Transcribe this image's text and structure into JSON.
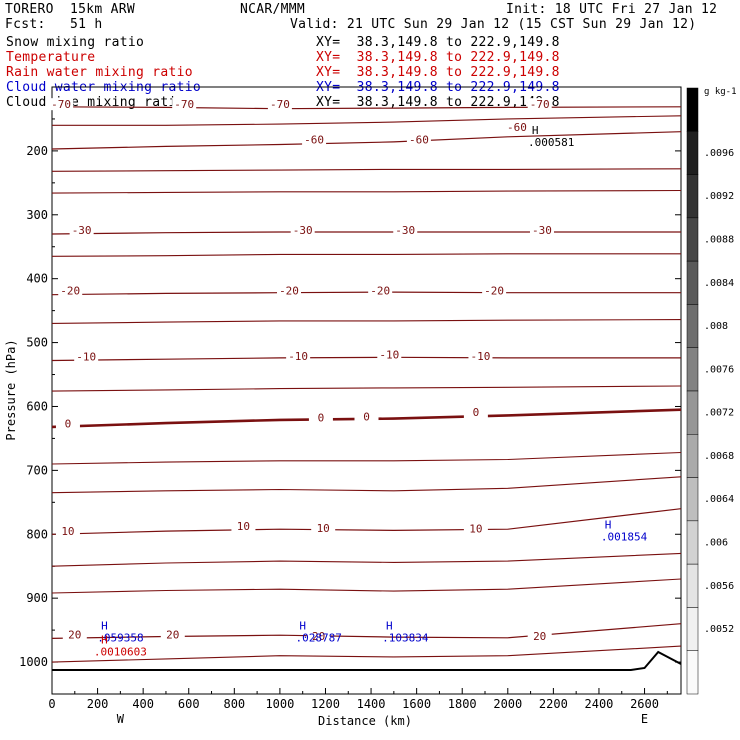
{
  "header": {
    "model": "TORERO  15km ARW",
    "org": "NCAR/MMM",
    "init": "Init: 18 UTC Fri 27 Jan 12",
    "fcst": "Fcst:   51 h",
    "valid": "Valid: 21 UTC Sun 29 Jan 12 (15 CST Sun 29 Jan 12)"
  },
  "fields": [
    {
      "name": "Snow mixing ratio",
      "xy": "XY=  38.3,149.8 to 222.9,149.8",
      "color": "#000000"
    },
    {
      "name": "Temperature",
      "xy": "XY=  38.3,149.8 to 222.9,149.8",
      "color": "#cc0000"
    },
    {
      "name": "Rain water mixing ratio",
      "xy": "XY=  38.3,149.8 to 222.9,149.8",
      "color": "#cc0000"
    },
    {
      "name": "Cloud water mixing ratio",
      "xy": "XY=  38.3,149.8 to 222.9,149.8",
      "color": "#0000cc"
    },
    {
      "name": "Cloud ice mixing ratio",
      "xy": "XY=  38.3,149.8 to 222.9,149.8",
      "color": "#000000"
    }
  ],
  "chart_data": {
    "type": "contour",
    "title": "",
    "xlabel": "Distance (km)",
    "ylabel": "Pressure (hPa)",
    "xlim": [
      0,
      2760
    ],
    "ylim": [
      1050,
      100
    ],
    "x_ticks": [
      0,
      200,
      400,
      600,
      800,
      1000,
      1200,
      1400,
      1600,
      1800,
      2000,
      2200,
      2400,
      2600
    ],
    "y_ticks": [
      200,
      300,
      400,
      500,
      600,
      700,
      800,
      900,
      1000
    ],
    "x_end_labels": {
      "left": "W",
      "right": "E"
    },
    "temperature_contours": [
      {
        "value": -70,
        "label": "-70",
        "label_points": [
          [
            40,
            130
          ],
          [
            580,
            130
          ],
          [
            1000,
            130
          ],
          [
            2140,
            130
          ]
        ],
        "pressure": [
          131,
          132,
          134,
          133,
          132,
          131
        ]
      },
      {
        "value": -60,
        "label": "-60",
        "label_points": [
          [
            1150,
            185
          ],
          [
            1610,
            185
          ],
          [
            2040,
            166
          ]
        ],
        "pressure": [
          197,
          193,
          190,
          186,
          178,
          170
        ]
      },
      {
        "value": -30,
        "label": "-30",
        "label_points": [
          [
            130,
            327
          ],
          [
            1100,
            327
          ],
          [
            1550,
            327
          ],
          [
            2150,
            327
          ]
        ],
        "pressure": [
          330,
          328,
          327,
          327,
          327,
          327
        ]
      },
      {
        "value": -20,
        "label": "-20",
        "label_points": [
          [
            80,
            422
          ],
          [
            1040,
            422
          ],
          [
            1440,
            422
          ],
          [
            1940,
            422
          ]
        ],
        "pressure": [
          425,
          423,
          422,
          421,
          422,
          422
        ]
      },
      {
        "value": -10,
        "label": "-10",
        "label_points": [
          [
            150,
            525
          ],
          [
            1080,
            524
          ],
          [
            1480,
            522
          ],
          [
            1880,
            524
          ]
        ],
        "pressure": [
          528,
          526,
          524,
          523,
          524,
          524
        ]
      },
      {
        "value": 0,
        "label": "0",
        "label_points": [
          [
            70,
            630
          ],
          [
            1180,
            620
          ],
          [
            1380,
            619
          ],
          [
            1860,
            612
          ]
        ],
        "pressure": [
          632,
          626,
          621,
          619,
          614,
          605
        ]
      },
      {
        "value": 10,
        "label": "10",
        "label_points": [
          [
            70,
            798
          ],
          [
            840,
            790
          ],
          [
            1190,
            793
          ],
          [
            1860,
            794
          ]
        ],
        "pressure": [
          800,
          795,
          792,
          794,
          792,
          760
        ]
      },
      {
        "value": 20,
        "label": "20",
        "label_points": [
          [
            100,
            960
          ],
          [
            530,
            960
          ],
          [
            1170,
            962
          ],
          [
            2140,
            962
          ]
        ],
        "pressure": [
          963,
          960,
          958,
          961,
          962,
          940
        ]
      }
    ],
    "cloud_water_max": [
      {
        "label": "H",
        "value": ".059358",
        "x": 230,
        "p": 968
      },
      {
        "label": "H",
        "value": ".028787",
        "x": 1100,
        "p": 968
      },
      {
        "label": "H",
        "value": ".103834",
        "x": 1480,
        "p": 968
      }
    ],
    "rain_water_max": [
      {
        "label": "H",
        "value": ".0010603",
        "x": 230,
        "p": 990
      }
    ],
    "snow_max": [
      {
        "label": "H",
        "value": ".001854",
        "x": 2440,
        "p": 810
      }
    ],
    "cloud_ice_max": [
      {
        "label": "H",
        "value": ".000581",
        "x": 2120,
        "p": 192
      }
    ],
    "colorbar": {
      "unit": "g kg-1",
      "labels": [
        ".0096",
        ".0092",
        ".0088",
        ".0084",
        ".008",
        ".0076",
        ".0072",
        ".0068",
        ".0064",
        ".006",
        ".0056",
        ".0052"
      ],
      "colors": [
        "#000000",
        "#1f1f1f",
        "#333333",
        "#474747",
        "#5a5a5a",
        "#6e6e6e",
        "#828282",
        "#969696",
        "#aaaaaa",
        "#bebebe",
        "#d2d2d2",
        "#e4e4e4",
        "#f0f0f0",
        "#fafafa"
      ]
    }
  }
}
